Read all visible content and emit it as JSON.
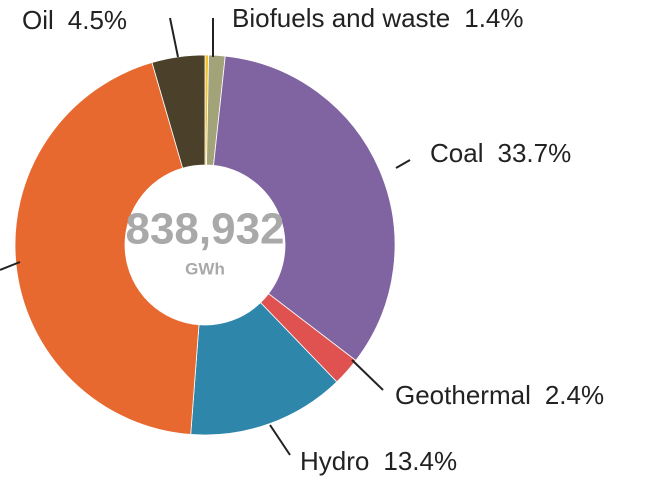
{
  "chart_data": {
    "type": "donut",
    "center_text": "838,932",
    "center_unit": "GWh",
    "categories": [
      null,
      "Biofuels and waste",
      "Coal",
      "Geothermal",
      "Hydro",
      null,
      "Oil"
    ],
    "values": [
      0.3,
      1.4,
      33.7,
      2.4,
      13.4,
      44.3,
      4.5
    ],
    "value_labels": [
      null,
      "1.4%",
      "33.7%",
      "2.4%",
      "13.4%",
      null,
      "4.5%"
    ],
    "colors": [
      "#f2c12e",
      "#a3a37a",
      "#8064a2",
      "#e0524f",
      "#2e86ab",
      "#e8692f",
      "#4b412b"
    ]
  }
}
